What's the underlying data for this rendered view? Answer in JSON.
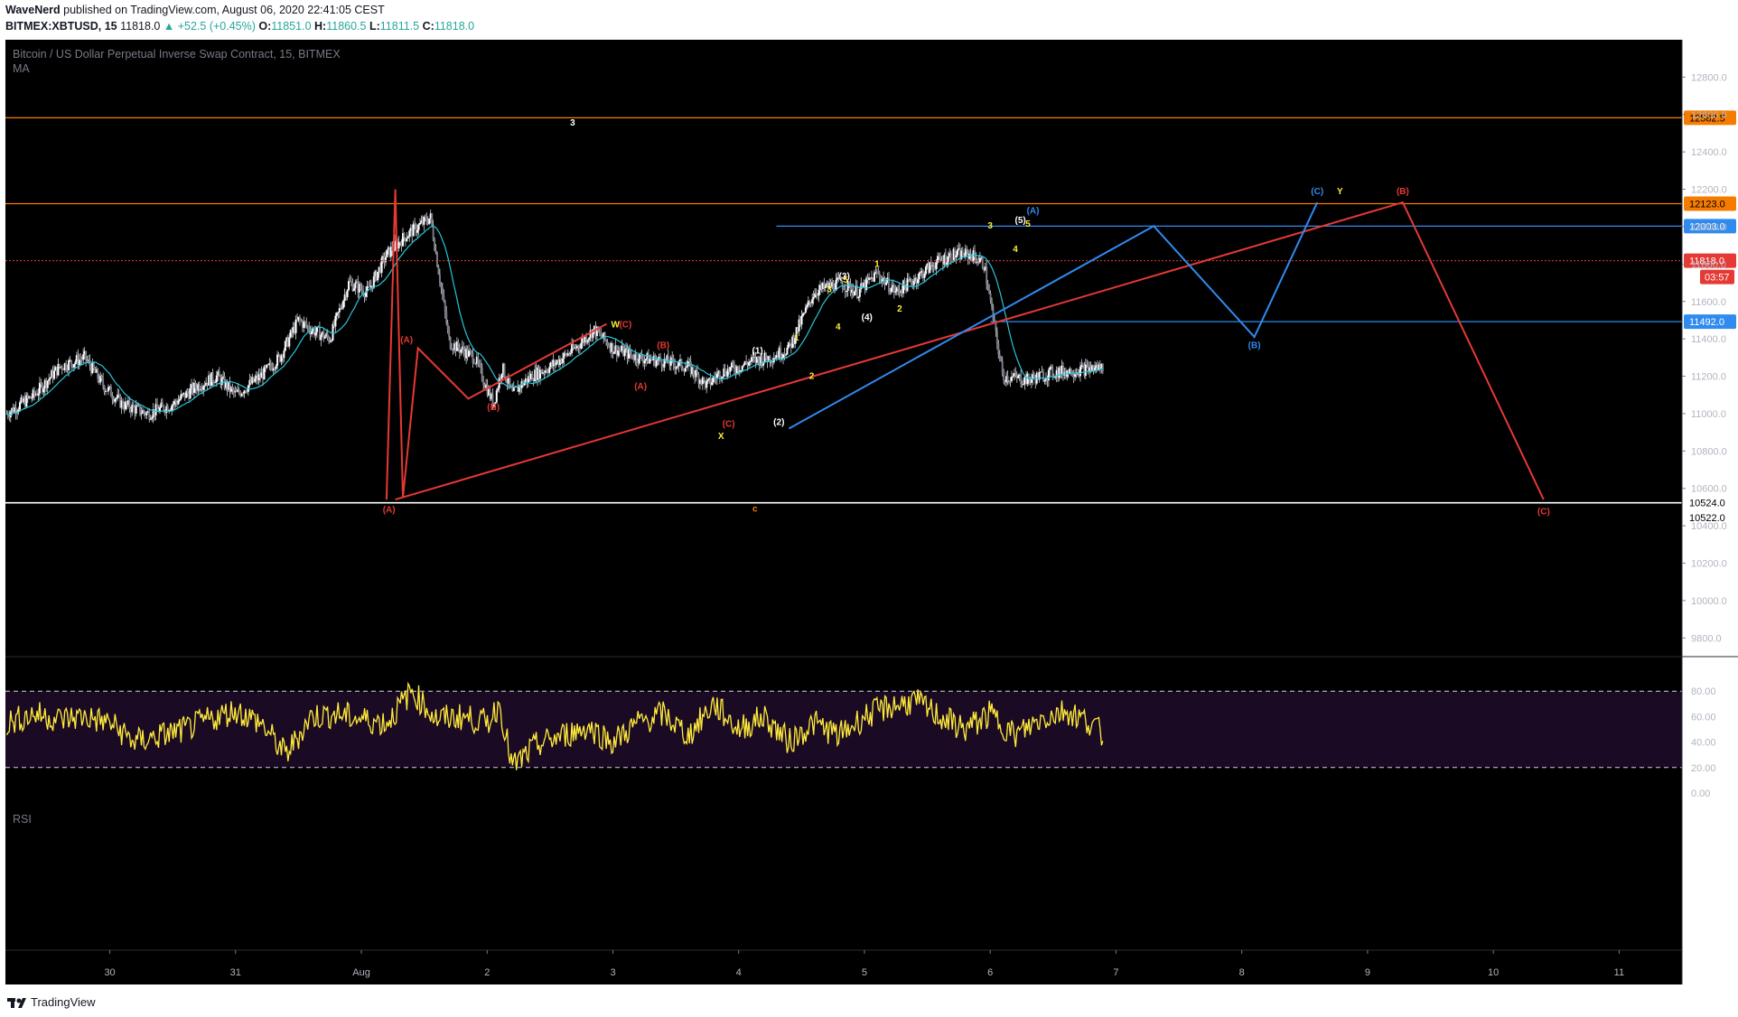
{
  "header": {
    "author": "WaveNerd",
    "published": "published on TradingView.com, August 06, 2020 22:41:05 CEST",
    "symbol": "BITMEX:XBTUSD, 15",
    "last": "11818.0",
    "change": "▲ +52.5 (+0.45%)",
    "o_label": "O:",
    "o": "11851.0",
    "h_label": "H:",
    "h": "11860.5",
    "l_label": "L:",
    "l": "11811.5",
    "c_label": "C:",
    "c": "11818.0"
  },
  "pane": {
    "title": "Bitcoin / US Dollar Perpetual Inverse Swap Contract, 15, BITMEX",
    "indicator": "MA",
    "rsi_label": "RSI"
  },
  "footer": {
    "brand": "TradingView"
  },
  "colors": {
    "background": "#000000",
    "axis_text": "#b2b5be",
    "orange": "#f57c00",
    "blue": "#2f8bf0",
    "red": "#e53935",
    "yellow": "#ffeb3b",
    "white": "#ffffff",
    "ma": "#26c6da",
    "candle": "#d1d4dc",
    "rsi_fill": "#1a0a24"
  },
  "chart_data": {
    "type": "line",
    "title": "Bitcoin / US Dollar Perpetual Inverse Swap Contract, 15, BITMEX",
    "x_ticks": [
      "30",
      "31",
      "Aug",
      "2",
      "3",
      "4",
      "5",
      "6",
      "7",
      "8",
      "9",
      "10",
      "11"
    ],
    "x_tick_days": [
      0,
      1,
      2,
      3,
      4,
      5,
      6,
      7,
      8,
      9,
      10,
      11,
      12
    ],
    "xlim": [
      -0.83,
      12.5
    ],
    "ylim": [
      9700,
      13000
    ],
    "y_ticks": [
      "12800.0",
      "12600.0",
      "12400.0",
      "12200.0",
      "12000.0",
      "11800.0",
      "11600.0",
      "11400.0",
      "11200.0",
      "11000.0",
      "10800.0",
      "10600.0",
      "10400.0",
      "10200.0",
      "10000.0",
      "9800.0"
    ],
    "price_series": {
      "name": "XBTUSD",
      "x": [
        -0.82,
        -0.6,
        -0.4,
        -0.2,
        -0.05,
        0.1,
        0.3,
        0.5,
        0.7,
        0.85,
        1.0,
        1.2,
        1.35,
        1.5,
        1.6,
        1.75,
        1.9,
        2.05,
        2.2,
        2.35,
        2.55,
        2.7,
        2.9,
        3.05,
        3.12,
        3.2,
        3.26,
        3.35,
        3.5,
        3.7,
        3.85,
        4.0,
        4.2,
        4.4,
        4.6,
        4.75,
        4.85,
        5.0,
        5.1,
        5.25,
        5.4,
        5.6,
        5.8,
        5.95,
        6.1,
        6.25,
        6.4,
        6.55,
        6.7,
        6.85,
        6.95,
        7.1,
        7.3,
        7.5,
        7.65,
        7.8,
        7.9
      ],
      "y": [
        11000,
        11100,
        11250,
        11300,
        11150,
        11050,
        11000,
        11050,
        11150,
        11200,
        11100,
        11200,
        11300,
        11500,
        11450,
        11400,
        11700,
        11650,
        11850,
        11950,
        12050,
        11380,
        11300,
        11050,
        11250,
        11100,
        11150,
        11200,
        11250,
        11350,
        11450,
        11350,
        11300,
        11280,
        11250,
        11150,
        11220,
        11250,
        11280,
        11300,
        11350,
        11650,
        11700,
        11650,
        11750,
        11650,
        11720,
        11800,
        11850,
        11850,
        11800,
        11200,
        11180,
        11220,
        11230,
        11240,
        11250
      ]
    },
    "rsi_series": {
      "name": "RSI",
      "ylim": [
        0,
        100
      ],
      "y_ticks": [
        "80.00",
        "60.00",
        "40.00",
        "20.00",
        "0.00"
      ],
      "x": [
        -0.82,
        -0.6,
        -0.4,
        -0.2,
        0.0,
        0.2,
        0.4,
        0.6,
        0.8,
        1.0,
        1.2,
        1.4,
        1.6,
        1.8,
        2.0,
        2.2,
        2.4,
        2.6,
        2.8,
        3.0,
        3.1,
        3.2,
        3.4,
        3.6,
        3.8,
        4.0,
        4.2,
        4.4,
        4.6,
        4.8,
        5.0,
        5.2,
        5.4,
        5.6,
        5.8,
        6.0,
        6.2,
        6.4,
        6.6,
        6.8,
        7.0,
        7.2,
        7.4,
        7.6,
        7.8,
        7.9
      ],
      "y": [
        55,
        62,
        58,
        60,
        55,
        40,
        45,
        50,
        58,
        65,
        55,
        30,
        60,
        62,
        58,
        55,
        80,
        58,
        60,
        55,
        70,
        20,
        38,
        45,
        52,
        40,
        55,
        62,
        45,
        70,
        50,
        60,
        40,
        55,
        45,
        60,
        68,
        72,
        60,
        50,
        62,
        45,
        58,
        65,
        55,
        45
      ]
    },
    "levels": [
      {
        "price": 12582.5,
        "label": "12582.5",
        "color": "#f57c00",
        "x_from": -0.83
      },
      {
        "price": 12123.0,
        "label": "12123.0",
        "color": "#f57c00",
        "x_from": -0.83
      },
      {
        "price": 12003.0,
        "label": "12003.0",
        "color": "#2f8bf0",
        "x_from": 5.3
      },
      {
        "price": 11492.0,
        "label": "11492.0",
        "color": "#2f8bf0",
        "x_from": 7.0
      },
      {
        "price": 10524.0,
        "label": "10524.0",
        "color": "#ffffff",
        "x_from": -0.83
      },
      {
        "price": 10522.0,
        "label": "10522.0",
        "color": "#ffffff",
        "x_from": -0.83
      }
    ],
    "last_price": {
      "price": 11818.0,
      "label": "11818.0",
      "countdown": "03:57",
      "color": "#e53935"
    },
    "wave_lines": [
      {
        "color": "#e53935",
        "points": [
          [
            2.2,
            10540
          ],
          [
            2.27,
            12200
          ],
          [
            2.33,
            10550
          ],
          [
            2.45,
            11350
          ],
          [
            2.85,
            11080
          ],
          [
            3.95,
            11480
          ]
        ]
      },
      {
        "color": "#e53935",
        "points": [
          [
            2.27,
            10540
          ],
          [
            10.28,
            12130
          ],
          [
            11.4,
            10540
          ]
        ]
      },
      {
        "color": "#2f8bf0",
        "points": [
          [
            5.4,
            10920
          ],
          [
            8.3,
            12003
          ],
          [
            9.1,
            11410
          ],
          [
            9.6,
            12130
          ]
        ]
      }
    ],
    "annotations": [
      {
        "t": "3",
        "x": 3.68,
        "y": 12542,
        "c": "#ffffff"
      },
      {
        "t": "(A)",
        "x": 2.22,
        "y": 10470,
        "c": "#e53935"
      },
      {
        "t": "(A)",
        "x": 2.36,
        "y": 11380,
        "c": "#e53935"
      },
      {
        "t": "(B)",
        "x": 3.05,
        "y": 11020,
        "c": "#e53935"
      },
      {
        "t": "W",
        "x": 4.02,
        "y": 11460,
        "c": "#ffeb3b"
      },
      {
        "t": "(C)",
        "x": 4.1,
        "y": 11460,
        "c": "#e53935"
      },
      {
        "t": "(B)",
        "x": 4.4,
        "y": 11350,
        "c": "#e53935"
      },
      {
        "t": "(A)",
        "x": 4.22,
        "y": 11130,
        "c": "#e53935"
      },
      {
        "t": "(C)",
        "x": 4.92,
        "y": 10930,
        "c": "#e53935"
      },
      {
        "t": "X",
        "x": 4.86,
        "y": 10865,
        "c": "#ffeb3b"
      },
      {
        "t": "c",
        "x": 5.13,
        "y": 10475,
        "c": "#f57c00"
      },
      {
        "t": "(1)",
        "x": 5.15,
        "y": 11320,
        "c": "#ffffff"
      },
      {
        "t": "(2)",
        "x": 5.32,
        "y": 10940,
        "c": "#ffffff"
      },
      {
        "t": "1",
        "x": 5.46,
        "y": 11390,
        "c": "#ffeb3b"
      },
      {
        "t": "2",
        "x": 5.58,
        "y": 11185,
        "c": "#ffeb3b"
      },
      {
        "t": "(3)",
        "x": 5.84,
        "y": 11720,
        "c": "#ffffff"
      },
      {
        "t": "3",
        "x": 5.72,
        "y": 11650,
        "c": "#ffeb3b"
      },
      {
        "t": "5",
        "x": 5.85,
        "y": 11700,
        "c": "#ffeb3b"
      },
      {
        "t": "4",
        "x": 5.79,
        "y": 11450,
        "c": "#ffeb3b"
      },
      {
        "t": "(4)",
        "x": 6.02,
        "y": 11500,
        "c": "#ffffff"
      },
      {
        "t": "1",
        "x": 6.1,
        "y": 11785,
        "c": "#ffeb3b"
      },
      {
        "t": "2",
        "x": 6.28,
        "y": 11545,
        "c": "#ffeb3b"
      },
      {
        "t": "3",
        "x": 7.0,
        "y": 11990,
        "c": "#ffeb3b"
      },
      {
        "t": "(5)",
        "x": 7.24,
        "y": 12020,
        "c": "#ffffff"
      },
      {
        "t": "5",
        "x": 7.3,
        "y": 12000,
        "c": "#ffeb3b"
      },
      {
        "t": "4",
        "x": 7.2,
        "y": 11865,
        "c": "#ffeb3b"
      },
      {
        "t": "(A)",
        "x": 7.34,
        "y": 12070,
        "c": "#2f8bf0"
      },
      {
        "t": "(B)",
        "x": 9.1,
        "y": 11350,
        "c": "#2f8bf0"
      },
      {
        "t": "(C)",
        "x": 9.6,
        "y": 12175,
        "c": "#2f8bf0"
      },
      {
        "t": "Y",
        "x": 9.78,
        "y": 12175,
        "c": "#ffeb3b"
      },
      {
        "t": "(B)",
        "x": 10.28,
        "y": 12175,
        "c": "#e53935"
      },
      {
        "t": "(C)",
        "x": 11.4,
        "y": 10460,
        "c": "#e53935"
      }
    ]
  }
}
